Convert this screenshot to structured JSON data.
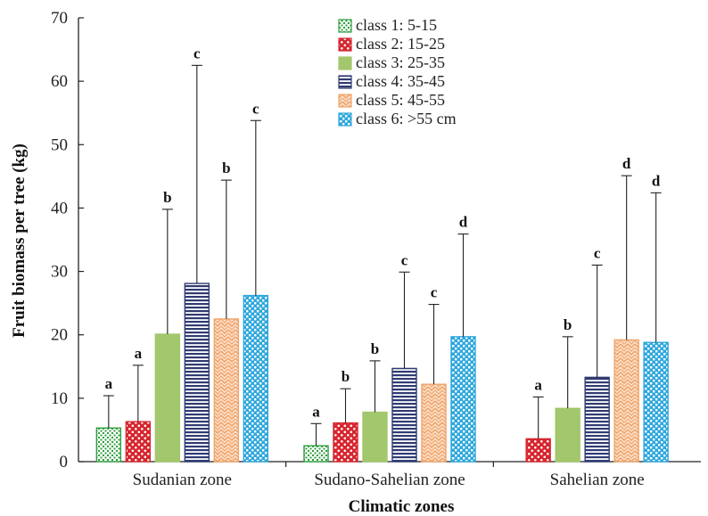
{
  "chart_data": {
    "type": "bar",
    "title": "",
    "xlabel": "Climatic zones",
    "ylabel": "Fruit biomass per tree (kg)",
    "ylim": [
      0,
      70
    ],
    "yticks": [
      "0",
      "10",
      "20",
      "30",
      "40",
      "50",
      "60",
      "70"
    ],
    "grid": false,
    "legend_position": "top-center",
    "error_bars": true,
    "categories": [
      "Sudanian zone",
      "Sudano-Sahelian zone",
      "Sahelian zone"
    ],
    "series": [
      {
        "name": "class 1: 5-15",
        "color": "#2e9e3e",
        "pattern": "dots-green",
        "values": [
          5.3,
          2.5,
          null
        ],
        "errors_upper": [
          10.4,
          6.0,
          null
        ],
        "letters": [
          "a",
          "a",
          null
        ]
      },
      {
        "name": "class 2: 15-25",
        "color": "#d7262f",
        "pattern": "bubbles-red",
        "values": [
          6.3,
          6.1,
          3.6
        ],
        "errors_upper": [
          15.2,
          11.5,
          10.2
        ],
        "letters": [
          "a",
          "b",
          "a"
        ]
      },
      {
        "name": "class 3: 25-35",
        "color": "#a3c76c",
        "pattern": "solid-green",
        "values": [
          20.1,
          7.8,
          8.4
        ],
        "errors_upper": [
          39.8,
          15.9,
          19.7
        ],
        "letters": [
          "b",
          "b",
          "b"
        ]
      },
      {
        "name": "class 4: 35-45",
        "color": "#2f3b72",
        "pattern": "horizontal-lines-navy",
        "values": [
          28.1,
          14.7,
          13.3
        ],
        "errors_upper": [
          62.5,
          29.9,
          31.0
        ],
        "letters": [
          "c",
          "c",
          "c"
        ]
      },
      {
        "name": "class 5: 45-55",
        "color": "#f0a46a",
        "pattern": "zigzag-orange",
        "values": [
          22.5,
          12.2,
          19.2
        ],
        "errors_upper": [
          44.4,
          24.8,
          45.1
        ],
        "letters": [
          "b",
          "c",
          "d"
        ]
      },
      {
        "name": "class 6: >55 cm",
        "color": "#2ea7dd",
        "pattern": "checker-blue",
        "values": [
          26.2,
          19.7,
          18.8
        ],
        "errors_upper": [
          53.8,
          35.9,
          42.4
        ],
        "letters": [
          "c",
          "d",
          "d"
        ]
      }
    ]
  }
}
